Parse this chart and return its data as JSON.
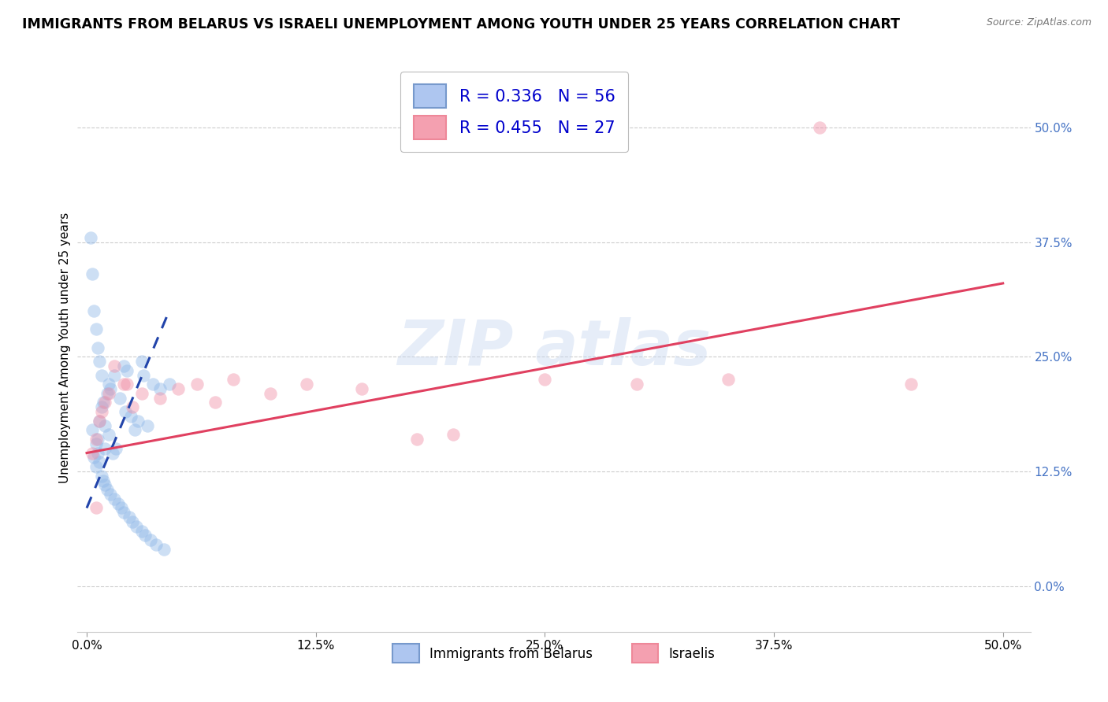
{
  "title": "IMMIGRANTS FROM BELARUS VS ISRAELI UNEMPLOYMENT AMONG YOUTH UNDER 25 YEARS CORRELATION CHART",
  "source": "Source: ZipAtlas.com",
  "ylabel_label": "Unemployment Among Youth under 25 years",
  "legend_series": [
    {
      "label": "Immigrants from Belarus",
      "facecolor": "#aec6f0",
      "edgecolor": "#7799cc",
      "R": "0.336",
      "N": "56"
    },
    {
      "label": "Israelis",
      "facecolor": "#f4a0b0",
      "edgecolor": "#ee8899",
      "R": "0.455",
      "N": "27"
    }
  ],
  "blue_scatter_x": [
    0.3,
    0.4,
    0.5,
    0.5,
    0.6,
    0.6,
    0.7,
    0.7,
    0.8,
    0.8,
    0.9,
    0.9,
    1.0,
    1.0,
    1.0,
    1.1,
    1.1,
    1.2,
    1.2,
    1.3,
    1.3,
    1.4,
    1.5,
    1.5,
    1.6,
    1.7,
    1.8,
    1.9,
    2.0,
    2.0,
    2.1,
    2.2,
    2.3,
    2.4,
    2.5,
    2.6,
    2.7,
    2.8,
    3.0,
    3.0,
    3.1,
    3.2,
    3.3,
    3.5,
    3.6,
    3.8,
    4.0,
    4.2,
    4.5,
    0.2,
    0.3,
    0.4,
    0.5,
    0.6,
    0.7,
    0.8
  ],
  "blue_scatter_y": [
    17.0,
    14.0,
    15.5,
    13.0,
    16.0,
    14.5,
    18.0,
    13.5,
    19.5,
    12.0,
    20.0,
    11.5,
    17.5,
    15.0,
    11.0,
    21.0,
    10.5,
    22.0,
    16.5,
    21.5,
    10.0,
    14.5,
    23.0,
    9.5,
    15.0,
    9.0,
    20.5,
    8.5,
    24.0,
    8.0,
    19.0,
    23.5,
    7.5,
    18.5,
    7.0,
    17.0,
    6.5,
    18.0,
    24.5,
    6.0,
    23.0,
    5.5,
    17.5,
    5.0,
    22.0,
    4.5,
    21.5,
    4.0,
    22.0,
    38.0,
    34.0,
    30.0,
    28.0,
    26.0,
    24.5,
    23.0
  ],
  "pink_scatter_x": [
    0.3,
    0.5,
    0.7,
    1.0,
    1.5,
    2.0,
    2.5,
    3.0,
    4.0,
    5.0,
    6.0,
    7.0,
    8.0,
    10.0,
    12.0,
    15.0,
    18.0,
    20.0,
    25.0,
    30.0,
    35.0,
    40.0,
    45.0,
    0.5,
    0.8,
    1.2,
    2.2
  ],
  "pink_scatter_y": [
    14.5,
    16.0,
    18.0,
    20.0,
    24.0,
    22.0,
    19.5,
    21.0,
    20.5,
    21.5,
    22.0,
    20.0,
    22.5,
    21.0,
    22.0,
    21.5,
    16.0,
    16.5,
    22.5,
    22.0,
    22.5,
    50.0,
    22.0,
    8.5,
    19.0,
    21.0,
    22.0
  ],
  "blue_line_x": [
    0.0,
    4.5
  ],
  "blue_line_y": [
    8.5,
    30.0
  ],
  "pink_line_x": [
    0.0,
    50.0
  ],
  "pink_line_y": [
    14.5,
    33.0
  ],
  "xlim": [
    -0.5,
    51.5
  ],
  "ylim": [
    -5,
    57
  ],
  "xtick_vals": [
    0,
    12.5,
    25.0,
    37.5,
    50.0
  ],
  "xtick_labels": [
    "0.0%",
    "12.5%",
    "25.0%",
    "37.5%",
    "50.0%"
  ],
  "ytick_vals": [
    0,
    12.5,
    25.0,
    37.5,
    50.0
  ],
  "ytick_labels": [
    "0.0%",
    "12.5%",
    "25.0%",
    "37.5%",
    "50.0%"
  ],
  "scatter_size": 140,
  "scatter_alpha": 0.45,
  "blue_scatter_color": "#90b8e8",
  "pink_scatter_color": "#f090a8",
  "blue_line_color": "#2244aa",
  "pink_line_color": "#e04060",
  "title_fontsize": 12.5,
  "source_fontsize": 9,
  "axis_label_fontsize": 11,
  "tick_fontsize": 11,
  "right_tick_color": "#4472C4",
  "watermark_color": "#c8d8f0",
  "watermark_alpha": 0.45
}
